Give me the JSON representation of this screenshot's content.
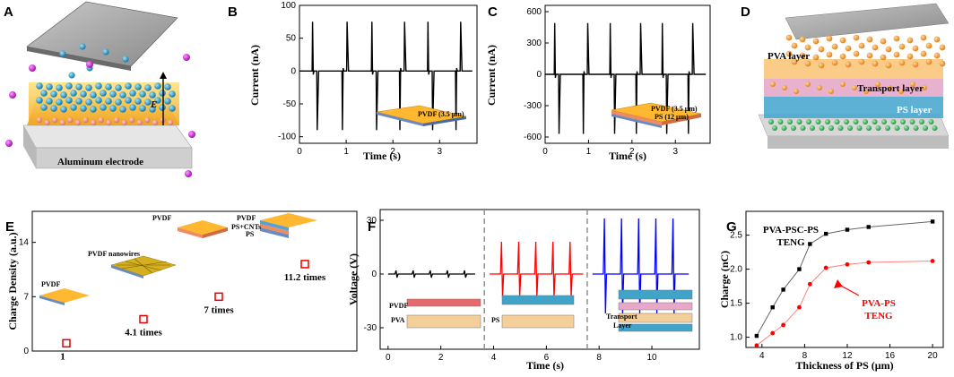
{
  "panel_labels": [
    "A",
    "B",
    "C",
    "D",
    "E",
    "F",
    "G"
  ],
  "panel_a": {
    "electrode_label": "Aluminum electrode",
    "field_label": "E"
  },
  "panel_d": {
    "layer_top": "PVA layer",
    "layer_mid": "Transport layer",
    "layer_bottom": "PS layer"
  },
  "panel_b_inset": {
    "label": "PVDF (3.5 μm)"
  },
  "panel_c_inset": {
    "label_1": "PVDF (3.5 μm)",
    "label_2": "PS (12 μm)"
  },
  "panel_e_devices": [
    "PVDF",
    "PVDF nanowires",
    "PVDF",
    "PVDF",
    "PS+CNTs",
    "PS"
  ],
  "panel_f_labels": {
    "pvdf": "PVDF",
    "pva": "PVA",
    "ps": "PS",
    "transport_1": "Transport",
    "transport_2": "Layer"
  },
  "chart_data": [
    {
      "panel": "B",
      "type": "line",
      "title": "",
      "xlabel": "Time (s)",
      "ylabel": "Current (nA)",
      "xlim": [
        0,
        3.8
      ],
      "ylim": [
        -110,
        100
      ],
      "xticks": [
        0,
        1,
        2,
        3
      ],
      "yticks": [
        100,
        50,
        0,
        -50,
        -100
      ],
      "pulse_times": [
        0.28,
        0.92,
        1.55,
        2.15,
        2.75,
        3.35
      ],
      "peak_positive": 75,
      "peak_negative": -90,
      "baseline": 0
    },
    {
      "panel": "C",
      "type": "line",
      "title": "",
      "xlabel": "Time (s)",
      "ylabel": "Current (nA)",
      "xlim": [
        0,
        3.8
      ],
      "ylim": [
        -660,
        660
      ],
      "xticks": [
        0,
        1,
        2,
        3
      ],
      "yticks": [
        600,
        300,
        0,
        -300,
        -600
      ],
      "pulse_times": [
        0.22,
        0.88,
        1.5,
        2.1,
        2.7,
        3.3
      ],
      "peak_positive": 490,
      "peak_negative": -570,
      "baseline": 0
    },
    {
      "panel": "E",
      "type": "scatter",
      "title": "",
      "xlabel": "",
      "ylabel": "Charge Density (a.u.)",
      "ylim": [
        0,
        18
      ],
      "yticks": [
        0,
        7,
        14
      ],
      "categories": [
        "PVDF film",
        "PVDF nanowires",
        "PVDF/PS",
        "PVDF/PS+CNTs/PS"
      ],
      "values": [
        1,
        4.1,
        7,
        11.2
      ],
      "annotations": [
        "1",
        "4.1 times",
        "7 times",
        "11.2 times"
      ]
    },
    {
      "panel": "F",
      "type": "line",
      "title": "",
      "xlabel": "Time (s)",
      "ylabel": "Voltage (V)",
      "xlim": [
        -0.3,
        11.8
      ],
      "ylim": [
        -42,
        36
      ],
      "xticks": [
        0,
        2,
        4,
        6,
        8,
        10
      ],
      "yticks": [
        30,
        0,
        -30
      ],
      "dividers": [
        3.65,
        7.55
      ],
      "series": [
        {
          "name": "PVDF/PVA",
          "color": "#000000",
          "t_start": 0,
          "t_end": 3.3,
          "pulse_times": [
            0.3,
            0.95,
            1.6,
            2.25,
            2.9
          ],
          "peak_positive": 2,
          "peak_negative": -2
        },
        {
          "name": "PVDF/PS/PVA",
          "color": "#ff0000",
          "t_start": 3.85,
          "t_end": 7.4,
          "pulse_times": [
            4.3,
            4.95,
            5.6,
            6.25,
            6.9
          ],
          "peak_positive": 18,
          "peak_negative": -13
        },
        {
          "name": "PVDF/Transport Layer/PS/PVA",
          "color": "#0000ff",
          "t_start": 7.75,
          "t_end": 11.4,
          "pulse_times": [
            8.2,
            8.85,
            9.5,
            10.15,
            10.8
          ],
          "peak_positive": 31,
          "peak_negative": -22
        }
      ]
    },
    {
      "panel": "G",
      "type": "line",
      "title": "",
      "xlabel": "Thickness of PS (μm)",
      "ylabel": "Charge (nC)",
      "xlim": [
        2.5,
        21
      ],
      "ylim": [
        0.85,
        2.85
      ],
      "xticks": [
        4,
        8,
        12,
        16,
        20
      ],
      "yticks": [
        1.0,
        1.5,
        2.0,
        2.5
      ],
      "x": [
        3.5,
        5,
        6,
        7.5,
        8.5,
        10,
        12,
        14,
        20
      ],
      "series": [
        {
          "name": "PVA-PSC-PS TENG",
          "line1": "PVA-PSC-PS",
          "line2": "TENG",
          "color": "#000000",
          "values": [
            1.02,
            1.44,
            1.7,
            2.0,
            2.37,
            2.52,
            2.58,
            2.62,
            2.7
          ]
        },
        {
          "name": "PVA-PS TENG",
          "line1": "PVA-PS",
          "line2": "TENG",
          "color": "#ff0000",
          "values": [
            0.88,
            1.06,
            1.18,
            1.44,
            1.78,
            2.02,
            2.07,
            2.1,
            2.12
          ]
        }
      ]
    }
  ]
}
